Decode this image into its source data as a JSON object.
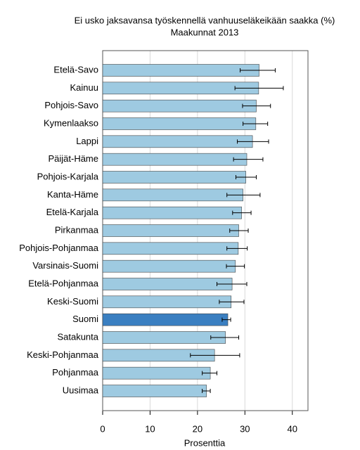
{
  "chart_data": {
    "type": "hbar",
    "title": "Ei usko jaksavansa työskennellä vanhuuseläkeikään saakka (%)",
    "subtitle": "Maakunnat 2013",
    "x_label": "Prosenttia",
    "categories": [
      "Etelä-Savo",
      "Kainuu",
      "Pohjois-Savo",
      "Kymenlaakso",
      "Lappi",
      "Päijät-Häme",
      "Pohjois-Karjala",
      "Kanta-Häme",
      "Etelä-Karjala",
      "Pirkanmaa",
      "Pohjois-Pohjanmaa",
      "Varsinais-Suomi",
      "Etelä-Pohjanmaa",
      "Keski-Suomi",
      "Suomi",
      "Satakunta",
      "Keski-Pohjanmaa",
      "Pohjanmaa",
      "Uusimaa"
    ],
    "values": [
      33.0,
      32.9,
      32.4,
      32.3,
      31.6,
      30.4,
      30.2,
      29.6,
      29.3,
      28.7,
      28.6,
      28.0,
      27.3,
      27.1,
      26.4,
      25.9,
      23.6,
      22.7,
      21.9
    ],
    "ci_low": [
      29.0,
      27.9,
      29.5,
      29.6,
      28.4,
      27.6,
      28.1,
      26.2,
      27.4,
      26.8,
      26.2,
      26.1,
      24.1,
      24.6,
      25.2,
      22.8,
      18.5,
      21.0,
      21.0
    ],
    "ci_high": [
      36.4,
      38.1,
      35.4,
      34.8,
      35.0,
      33.8,
      32.4,
      33.2,
      31.3,
      30.7,
      30.5,
      29.9,
      30.4,
      29.8,
      27.0,
      28.7,
      28.9,
      24.1,
      22.7
    ],
    "colors": [
      "#9ecae1",
      "#9ecae1",
      "#9ecae1",
      "#9ecae1",
      "#9ecae1",
      "#9ecae1",
      "#9ecae1",
      "#9ecae1",
      "#9ecae1",
      "#9ecae1",
      "#9ecae1",
      "#9ecae1",
      "#9ecae1",
      "#9ecae1",
      "#3a7fc1",
      "#9ecae1",
      "#9ecae1",
      "#9ecae1",
      "#9ecae1"
    ],
    "xlim": [
      0,
      43.3
    ],
    "xticks": [
      0,
      10,
      20,
      30,
      40
    ],
    "grid": true
  }
}
